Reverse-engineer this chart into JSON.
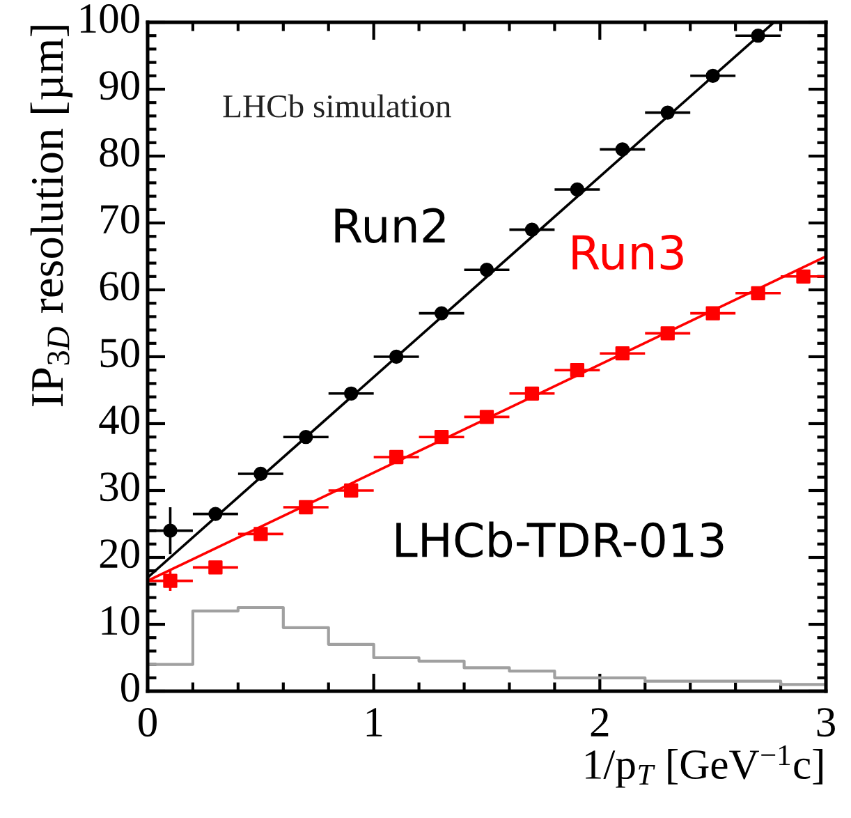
{
  "chart_data": {
    "type": "scatter",
    "xlabel": "1/p$_{T}$ [GeV$^{−1}$c]",
    "ylabel": "IP$_{3D}$ resolution [µm]",
    "xlim": [
      0,
      3
    ],
    "ylim": [
      0,
      100
    ],
    "xticks": [
      0,
      1,
      2,
      3
    ],
    "yticks": [
      0,
      10,
      20,
      30,
      40,
      50,
      60,
      70,
      80,
      90,
      100
    ],
    "grid": false,
    "annotations": [
      "LHCb simulation",
      "LHCb-TDR-013"
    ],
    "series": [
      {
        "type": "step",
        "color": "#a0a0a0",
        "x": [
          0,
          0.2,
          0.4,
          0.6,
          0.8,
          1.0,
          1.2,
          1.4,
          1.6,
          1.8,
          2.0,
          2.2,
          2.4,
          2.6,
          2.8,
          3.0
        ],
        "values": [
          4,
          12,
          12.5,
          9.5,
          7,
          5,
          4.5,
          3.5,
          3,
          2,
          2,
          1.5,
          1.5,
          1.5,
          1,
          1
        ]
      },
      {
        "type": "line",
        "color": "#000000",
        "x": [
          0,
          2.77
        ],
        "values": [
          17,
          100
        ],
        "marker": "none"
      },
      {
        "type": "line",
        "color": "#ff0000",
        "x": [
          0,
          3
        ],
        "values": [
          16.5,
          65
        ],
        "marker": "none"
      },
      {
        "name": "Run2",
        "color": "#000000",
        "marker": "circle",
        "x": [
          0.1,
          0.3,
          0.5,
          0.7,
          0.9,
          1.1,
          1.3,
          1.5,
          1.7,
          1.9,
          2.1,
          2.3,
          2.5,
          2.7
        ],
        "values": [
          24,
          26.5,
          32.5,
          38,
          44.5,
          50,
          56.5,
          63,
          69,
          75,
          81,
          86.5,
          92,
          98
        ],
        "xerrors": [
          0.1,
          0.1,
          0.1,
          0.1,
          0.1,
          0.1,
          0.1,
          0.1,
          0.1,
          0.1,
          0.1,
          0.1,
          0.1,
          0.1
        ],
        "errors": [
          3.5,
          null,
          null,
          null,
          null,
          null,
          null,
          null,
          null,
          null,
          null,
          null,
          null,
          null
        ]
      },
      {
        "name": "Run3",
        "color": "#ff0000",
        "marker": "square",
        "x": [
          0.1,
          0.3,
          0.5,
          0.7,
          0.9,
          1.1,
          1.3,
          1.5,
          1.7,
          1.9,
          2.1,
          2.3,
          2.5,
          2.7,
          2.9
        ],
        "values": [
          16.5,
          18.5,
          23.5,
          27.5,
          30,
          35,
          38,
          41,
          44.5,
          48,
          50.5,
          53.5,
          56.5,
          59.5,
          62
        ],
        "xerrors": [
          0.1,
          0.1,
          0.1,
          0.1,
          0.1,
          0.1,
          0.1,
          0.1,
          0.1,
          0.1,
          0.1,
          0.1,
          0.1,
          0.1,
          0.1
        ],
        "errors": [
          1.5,
          null,
          null,
          null,
          null,
          null,
          null,
          null,
          null,
          null,
          null,
          null,
          null,
          null,
          null
        ]
      }
    ]
  }
}
